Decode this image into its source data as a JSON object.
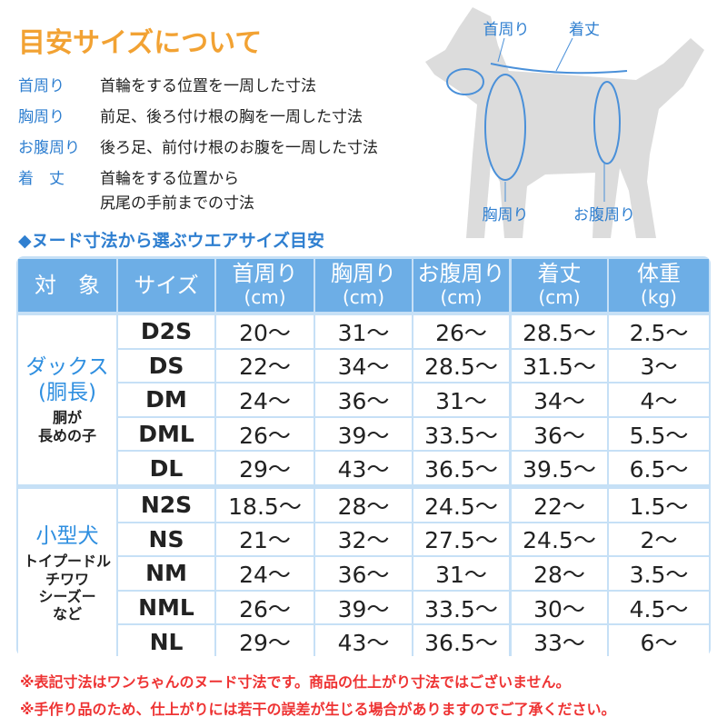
{
  "title": "目安サイズについて",
  "definitions": [
    {
      "term": "首周り",
      "lines": [
        "首輪をする位置を一周した寸法"
      ]
    },
    {
      "term": "胸周り",
      "lines": [
        "前足、後ろ付け根の胸を一周した寸法"
      ]
    },
    {
      "term": "お腹周り",
      "lines": [
        "後ろ足、前付け根のお腹を一周した寸法"
      ]
    },
    {
      "term": "着　丈",
      "lines": [
        "首輪をする位置から",
        "尻尾の手前までの寸法"
      ]
    }
  ],
  "diagram": {
    "neck": "首周り",
    "length": "着丈",
    "chest": "胸周り",
    "belly": "お腹周り"
  },
  "table": {
    "title": "◆ヌード寸法から選ぶウエアサイズ目安",
    "header": [
      {
        "name": "対　象"
      },
      {
        "name": "サイズ"
      },
      {
        "name": "首周り",
        "unit": "(cm)"
      },
      {
        "name": "胸周り",
        "unit": "(cm)"
      },
      {
        "name": "お腹周り",
        "unit": "(cm)"
      },
      {
        "name": "着丈",
        "unit": "(cm)"
      },
      {
        "name": "体重",
        "unit": "(kg)"
      }
    ],
    "groups": [
      {
        "name": [
          "ダックス",
          "(胴長)"
        ],
        "note": [
          "胴が",
          "長めの子"
        ],
        "rows": [
          [
            "D2S",
            "20～",
            "31～",
            "26～",
            "28.5～",
            "2.5～"
          ],
          [
            "DS",
            "22～",
            "34～",
            "28.5～",
            "31.5～",
            "3～"
          ],
          [
            "DM",
            "24～",
            "36～",
            "31～",
            "34～",
            "4～"
          ],
          [
            "DML",
            "26～",
            "39～",
            "33.5～",
            "36～",
            "5.5～"
          ],
          [
            "DL",
            "29～",
            "43～",
            "36.5～",
            "39.5～",
            "6.5～"
          ]
        ]
      },
      {
        "name": [
          "小型犬"
        ],
        "note": [
          "トイプードル",
          "チワワ",
          "シーズー",
          "など"
        ],
        "rows": [
          [
            "N2S",
            "18.5～",
            "28～",
            "24.5～",
            "22～",
            "1.5～"
          ],
          [
            "NS",
            "21～",
            "32～",
            "27.5～",
            "24.5～",
            "2～"
          ],
          [
            "NM",
            "24～",
            "36～",
            "31～",
            "28～",
            "3.5～"
          ],
          [
            "NML",
            "26～",
            "39～",
            "33.5～",
            "30～",
            "4.5～"
          ],
          [
            "NL",
            "29～",
            "43～",
            "36.5～",
            "33～",
            "6～"
          ]
        ]
      }
    ]
  },
  "notes": [
    "※表記寸法はワンちゃんのヌード寸法です。商品の仕上がり寸法ではございません。",
    "※手作り品のため、仕上がりには若干の誤差が生じる場合がありますのでご了承ください。"
  ]
}
